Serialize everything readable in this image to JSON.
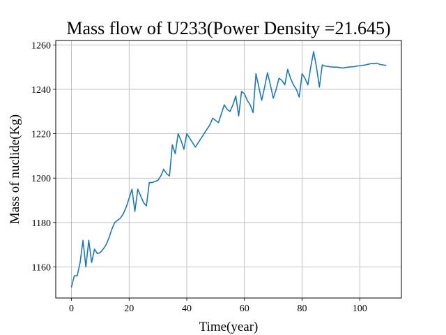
{
  "chart_data": {
    "type": "line",
    "title": "Mass flow of U233(Power Density =21.645)",
    "xlabel": "Time(year)",
    "ylabel": "Mass of nuclide(Kg)",
    "xlim": [
      -5.45,
      114.45
    ],
    "ylim": [
      1146,
      1262
    ],
    "xticks": [
      0,
      20,
      40,
      60,
      80,
      100
    ],
    "yticks": [
      1160,
      1180,
      1200,
      1220,
      1240,
      1260
    ],
    "grid": true,
    "series": [
      {
        "color": "#1f77b4",
        "x": [
          0,
          1,
          2,
          3,
          4,
          5,
          6,
          7,
          8,
          9,
          10,
          11,
          12,
          13,
          14,
          15,
          16,
          17,
          18,
          19,
          20,
          21,
          22,
          23,
          24,
          25,
          26,
          27,
          28,
          29,
          30,
          31,
          32,
          33,
          34,
          35,
          36,
          37,
          38,
          39,
          40,
          41,
          42,
          43,
          44,
          45,
          46,
          47,
          48,
          49,
          50,
          51,
          52,
          53,
          54,
          55,
          56,
          57,
          58,
          59,
          60,
          61,
          62,
          63,
          64,
          65,
          66,
          67,
          68,
          69,
          70,
          71,
          72,
          73,
          74,
          75,
          76,
          77,
          78,
          79,
          80,
          81,
          82,
          83,
          84,
          85,
          86,
          87,
          88,
          89,
          90,
          91,
          92,
          93,
          94,
          95,
          96,
          97,
          98,
          99,
          100,
          101,
          102,
          103,
          104,
          105,
          106,
          107,
          108,
          109
        ],
        "y": [
          1151,
          1156,
          1156,
          1162,
          1172,
          1160,
          1172,
          1162,
          1168,
          1166,
          1166.5,
          1168,
          1170,
          1173,
          1177,
          1180,
          1181,
          1182,
          1184,
          1187,
          1191,
          1195,
          1185,
          1195,
          1192,
          1189,
          1187.5,
          1198,
          1198,
          1198.5,
          1199,
          1201,
          1204,
          1202,
          1201,
          1215,
          1211,
          1220,
          1217,
          1213,
          1220,
          1218,
          1216,
          1214,
          1216,
          1218,
          1220,
          1222,
          1224,
          1227,
          1226,
          1225,
          1229,
          1233,
          1231,
          1230,
          1233,
          1237,
          1228,
          1239,
          1238,
          1235,
          1233,
          1229.5,
          1247,
          1241,
          1235,
          1241,
          1247.5,
          1242,
          1236,
          1240,
          1245,
          1244,
          1242,
          1249,
          1245,
          1242,
          1240,
          1236.5,
          1247,
          1245,
          1242,
          1250,
          1257,
          1250,
          1241,
          1251,
          1250.5,
          1250.3,
          1250.1,
          1250,
          1250,
          1249.8,
          1249.6,
          1249.8,
          1250,
          1250.1,
          1250.2,
          1250.5,
          1250.6,
          1250.8,
          1251,
          1251.3,
          1251.6,
          1251.6,
          1251.8,
          1251.2,
          1251,
          1250.8
        ]
      }
    ]
  }
}
